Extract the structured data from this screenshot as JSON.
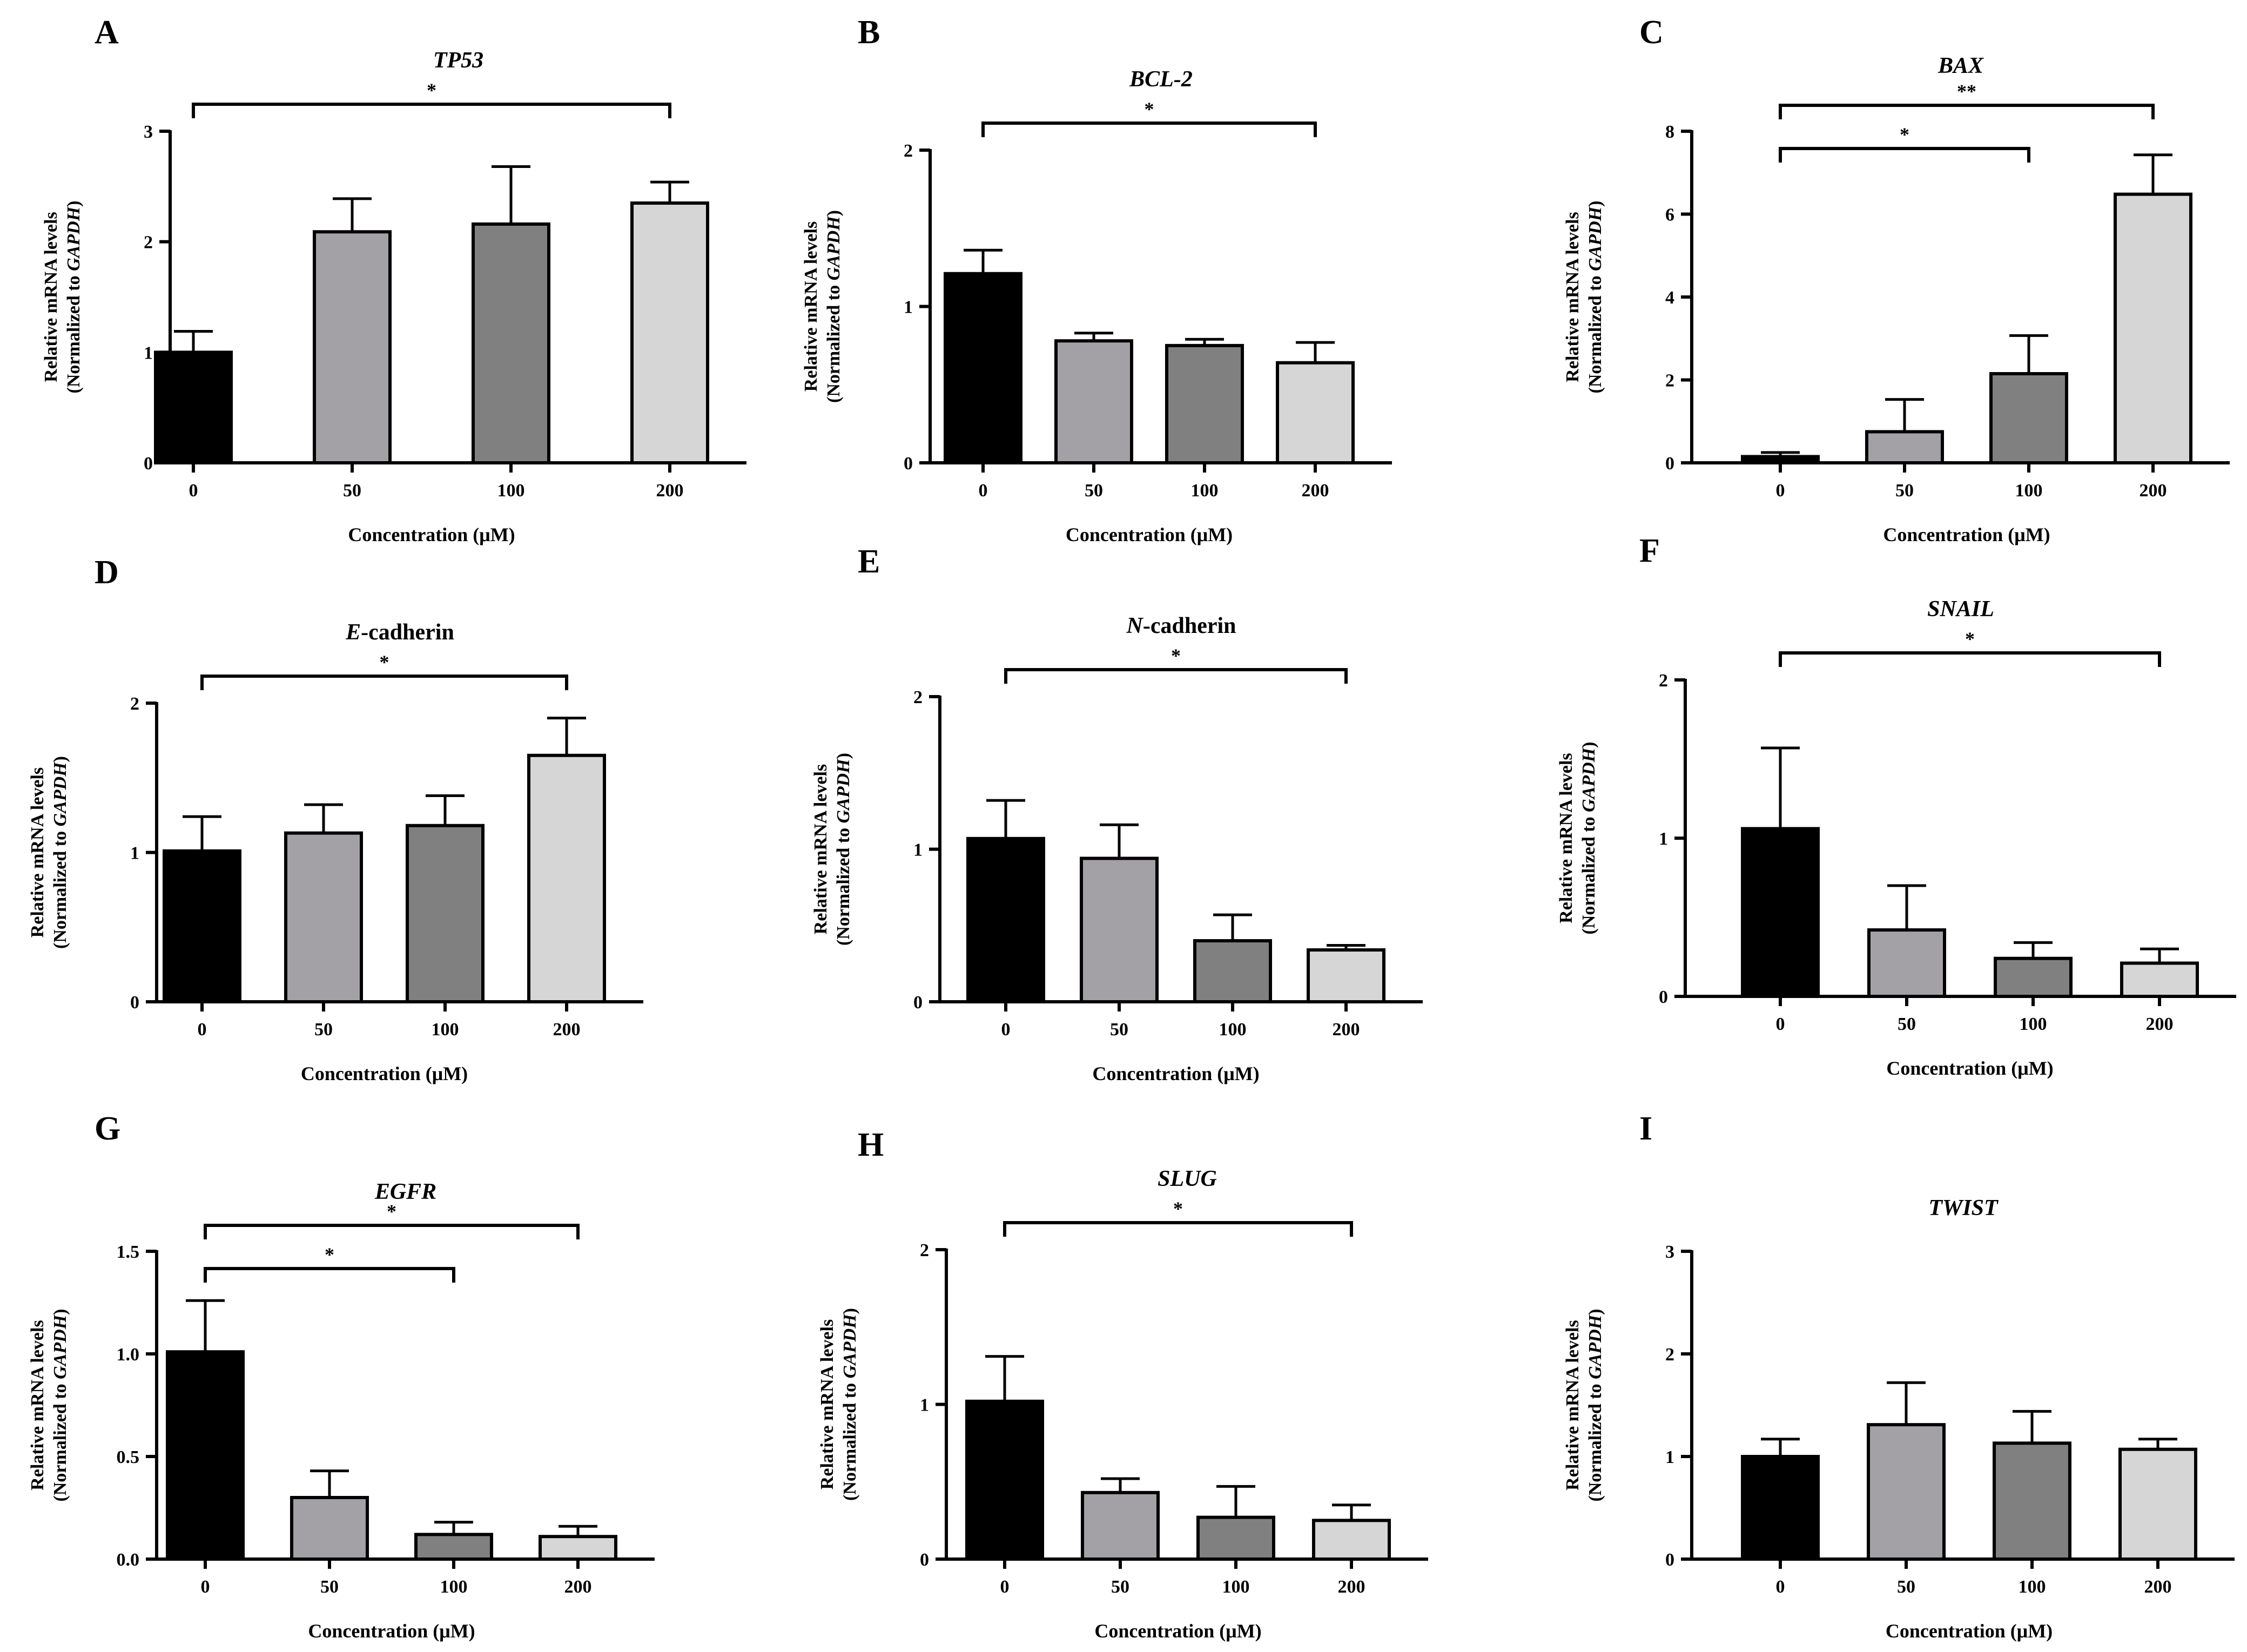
{
  "figure": {
    "xlabel": "Concentration (μM)",
    "ylabel_line1": "Relative mRNA levels",
    "ylabel_line2_prefix": "(Normalized to ",
    "ylabel_line2_italic": "GAPDH",
    "ylabel_line2_suffix": ")",
    "categories": [
      "0",
      "50",
      "100",
      "200"
    ],
    "bar_colors": [
      "#000000",
      "#a3a1a6",
      "#808080",
      "#d6d6d6"
    ]
  },
  "chart_data": [
    {
      "panel": "A",
      "type": "bar",
      "title_italic": "TP53",
      "title_rest": "",
      "ylim": [
        0,
        3
      ],
      "yticks": [
        "0",
        "1",
        "2",
        "3"
      ],
      "categories": [
        "0",
        "50",
        "100",
        "200"
      ],
      "values": [
        1.0,
        2.09,
        2.16,
        2.35
      ],
      "errors": [
        0.19,
        0.3,
        0.52,
        0.19
      ],
      "significance": [
        {
          "from": "0",
          "to": "200",
          "label": "*"
        }
      ]
    },
    {
      "panel": "B",
      "type": "bar",
      "title_italic": "BCL-2",
      "title_rest": "",
      "ylim": [
        0,
        2
      ],
      "yticks": [
        "0",
        "1",
        "2"
      ],
      "categories": [
        "0",
        "50",
        "100",
        "200"
      ],
      "values": [
        1.21,
        0.78,
        0.75,
        0.64
      ],
      "errors": [
        0.15,
        0.05,
        0.04,
        0.13
      ],
      "significance": [
        {
          "from": "0",
          "to": "200",
          "label": "*"
        }
      ]
    },
    {
      "panel": "C",
      "type": "bar",
      "title_italic": "BAX",
      "title_rest": "",
      "ylim": [
        0,
        8
      ],
      "yticks": [
        "0",
        "2",
        "4",
        "6",
        "8"
      ],
      "categories": [
        "0",
        "50",
        "100",
        "200"
      ],
      "values": [
        0.15,
        0.75,
        2.15,
        6.48
      ],
      "errors": [
        0.1,
        0.78,
        0.92,
        0.95
      ],
      "significance": [
        {
          "from": "0",
          "to": "200",
          "label": "**"
        },
        {
          "from": "0",
          "to": "100",
          "label": "*"
        }
      ]
    },
    {
      "panel": "D",
      "type": "bar",
      "title_italic": "E",
      "title_rest": "-cadherin",
      "ylim": [
        0,
        2
      ],
      "yticks": [
        "0",
        "1",
        "2"
      ],
      "categories": [
        "0",
        "50",
        "100",
        "200"
      ],
      "values": [
        1.01,
        1.13,
        1.18,
        1.65
      ],
      "errors": [
        0.23,
        0.19,
        0.2,
        0.25
      ],
      "significance": [
        {
          "from": "0",
          "to": "200",
          "label": "*"
        }
      ]
    },
    {
      "panel": "E",
      "type": "bar",
      "title_italic": "N",
      "title_rest": "-cadherin",
      "ylim": [
        0,
        2
      ],
      "yticks": [
        "0",
        "1",
        "2"
      ],
      "categories": [
        "0",
        "50",
        "100",
        "200"
      ],
      "values": [
        1.07,
        0.94,
        0.4,
        0.34
      ],
      "errors": [
        0.25,
        0.22,
        0.17,
        0.03
      ],
      "significance": [
        {
          "from": "0",
          "to": "200",
          "label": "*"
        }
      ]
    },
    {
      "panel": "F",
      "type": "bar",
      "title_italic": "SNAIL",
      "title_rest": "",
      "ylim": [
        0,
        2
      ],
      "yticks": [
        "0",
        "1",
        "2"
      ],
      "categories": [
        "0",
        "50",
        "100",
        "200"
      ],
      "values": [
        1.06,
        0.42,
        0.24,
        0.21
      ],
      "errors": [
        0.51,
        0.28,
        0.1,
        0.09
      ],
      "significance": [
        {
          "from": "0",
          "to": "200",
          "label": "*"
        }
      ]
    },
    {
      "panel": "G",
      "type": "bar",
      "title_italic": "EGFR",
      "title_rest": "",
      "ylim": [
        0,
        1.5
      ],
      "yticks": [
        "0.0",
        "0.5",
        "1.0",
        "1.5"
      ],
      "categories": [
        "0",
        "50",
        "100",
        "200"
      ],
      "values": [
        1.01,
        0.3,
        0.12,
        0.11
      ],
      "errors": [
        0.25,
        0.13,
        0.06,
        0.05
      ],
      "significance": [
        {
          "from": "0",
          "to": "200",
          "label": "*"
        },
        {
          "from": "0",
          "to": "100",
          "label": "*"
        }
      ]
    },
    {
      "panel": "H",
      "type": "bar",
      "title_italic": "SLUG",
      "title_rest": "",
      "ylim": [
        0,
        2
      ],
      "yticks": [
        "0",
        "1",
        "2"
      ],
      "categories": [
        "0",
        "50",
        "100",
        "200"
      ],
      "values": [
        1.02,
        0.43,
        0.27,
        0.25
      ],
      "errors": [
        0.29,
        0.09,
        0.2,
        0.1
      ],
      "significance": [
        {
          "from": "0",
          "to": "200",
          "label": "*"
        }
      ]
    },
    {
      "panel": "I",
      "type": "bar",
      "title_italic": "TWIST",
      "title_rest": "",
      "ylim": [
        0,
        3
      ],
      "yticks": [
        "0",
        "1",
        "2",
        "3"
      ],
      "categories": [
        "0",
        "50",
        "100",
        "200"
      ],
      "values": [
        1.0,
        1.31,
        1.13,
        1.07
      ],
      "errors": [
        0.17,
        0.41,
        0.31,
        0.1
      ],
      "significance": []
    }
  ]
}
